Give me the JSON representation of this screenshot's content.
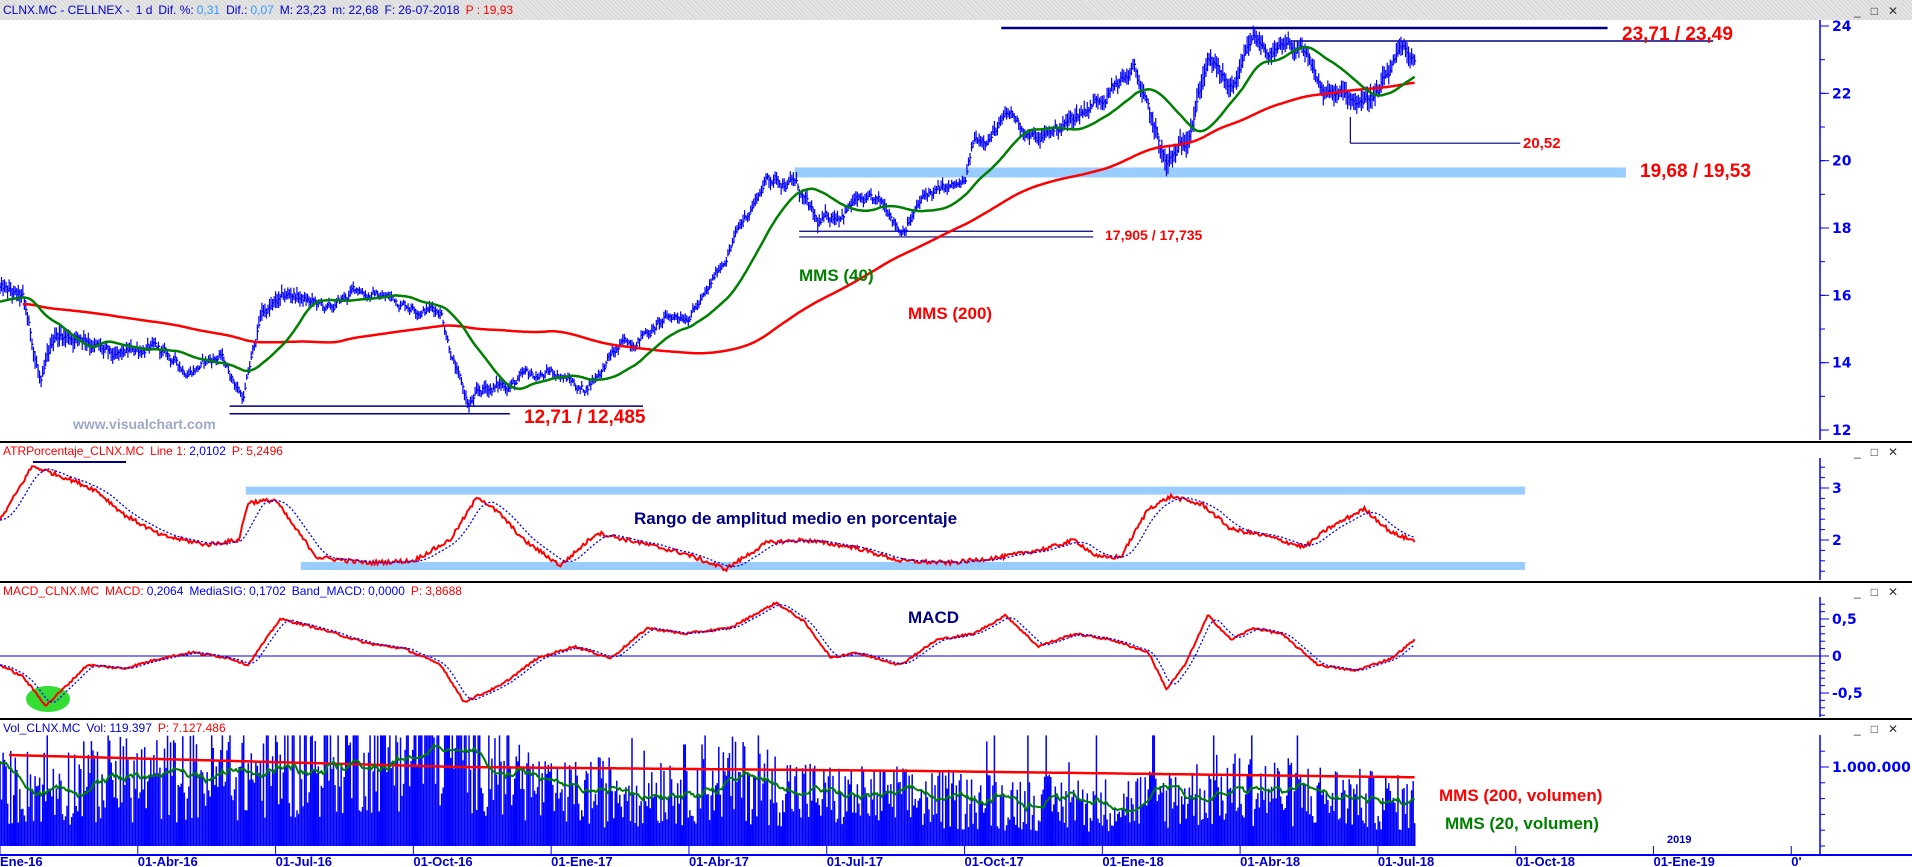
{
  "title_bar": {
    "symbol": "CLNX.MC - CELLNEX -",
    "period": "1 d",
    "dif_pct_label": "Dif. %:",
    "dif_pct": "0,31",
    "dif_label": "Dif.:",
    "dif": "0,07",
    "max_label": "M:",
    "max": "23,23",
    "min_label": "m:",
    "min": "22,68",
    "date_label": "F:",
    "date": "26-07-2018",
    "p_label": "P :",
    "p": "19,93"
  },
  "window_buttons": {
    "minimize": "_",
    "maximize": "□",
    "close": "✕"
  },
  "colors": {
    "bars": "#0000ff",
    "mms200": "#ff0000",
    "mms40": "#008000",
    "band": "#99ccff",
    "lines": "#000080",
    "signal": "#0000ff"
  },
  "watermark": "www.visualchart.com",
  "x_axis": {
    "labels": [
      {
        "m": 0,
        "text": "Ene-16"
      },
      {
        "m": 3,
        "text": "01-Abr-16"
      },
      {
        "m": 6,
        "text": "01-Jul-16"
      },
      {
        "m": 9,
        "text": "01-Oct-16"
      },
      {
        "m": 12,
        "text": "01-Ene-17"
      },
      {
        "m": 15,
        "text": "01-Abr-17"
      },
      {
        "m": 18,
        "text": "01-Jul-17"
      },
      {
        "m": 21,
        "text": "01-Oct-17"
      },
      {
        "m": 24,
        "text": "01-Ene-18"
      },
      {
        "m": 27,
        "text": "01-Abr-18"
      },
      {
        "m": 30,
        "text": "01-Jul-18"
      },
      {
        "m": 33,
        "text": "01-Oct-18"
      },
      {
        "m": 36,
        "text": "01-Ene-19"
      },
      {
        "m": 39,
        "text": "0'"
      }
    ],
    "year_marker": "2019"
  },
  "chart_data": [
    {
      "type": "line",
      "name": "price",
      "title": "CLNX.MC - CELLNEX - 1 d",
      "x_unit": "months since Jan-2016",
      "ylim": [
        12,
        24
      ],
      "yticks": [
        "12",
        "14",
        "16",
        "18",
        "20",
        "22",
        "24"
      ],
      "close_keypoints": [
        [
          0,
          16.2
        ],
        [
          0.5,
          15.8
        ],
        [
          0.9,
          13.3
        ],
        [
          1.2,
          14.8
        ],
        [
          1.9,
          14.8
        ],
        [
          2.5,
          14.0
        ],
        [
          3.2,
          14.5
        ],
        [
          4.0,
          13.8
        ],
        [
          4.8,
          14.2
        ],
        [
          5.3,
          13.0
        ],
        [
          5.7,
          15.5
        ],
        [
          6.4,
          16.0
        ],
        [
          7.2,
          15.5
        ],
        [
          7.8,
          16.2
        ],
        [
          8.8,
          15.8
        ],
        [
          9.6,
          15.6
        ],
        [
          10.0,
          13.5
        ],
        [
          10.2,
          12.7
        ],
        [
          10.6,
          13.2
        ],
        [
          11.4,
          13.5
        ],
        [
          12.2,
          13.7
        ],
        [
          12.7,
          13.2
        ],
        [
          13.3,
          14.2
        ],
        [
          14.1,
          15.0
        ],
        [
          14.9,
          15.5
        ],
        [
          15.4,
          16.0
        ],
        [
          15.9,
          17.5
        ],
        [
          16.7,
          19.5
        ],
        [
          17.3,
          19.4
        ],
        [
          17.8,
          18.0
        ],
        [
          18.6,
          18.8
        ],
        [
          19.4,
          18.5
        ],
        [
          19.6,
          18.0
        ],
        [
          20.2,
          19.0
        ],
        [
          21.0,
          19.2
        ],
        [
          21.2,
          20.5
        ],
        [
          22.0,
          21.3
        ],
        [
          22.6,
          20.6
        ],
        [
          23.4,
          21.3
        ],
        [
          24.2,
          22.2
        ],
        [
          24.7,
          22.7
        ],
        [
          25.1,
          21.0
        ],
        [
          25.4,
          19.8
        ],
        [
          25.8,
          20.5
        ],
        [
          26.3,
          23.1
        ],
        [
          26.8,
          22.0
        ],
        [
          27.3,
          23.5
        ],
        [
          27.7,
          23.2
        ],
        [
          28.3,
          23.3
        ],
        [
          28.8,
          22.0
        ],
        [
          29.5,
          21.8
        ],
        [
          30.0,
          22.0
        ],
        [
          30.5,
          23.1
        ],
        [
          30.8,
          23.0
        ]
      ],
      "moving_averages": [
        {
          "name": "MMS (40)",
          "period": 40
        },
        {
          "name": "MMS (200)",
          "period": 200
        }
      ],
      "annotations": {
        "resistance": {
          "label": "23,71 / 23,49",
          "levels": [
            23.71,
            23.49
          ],
          "from": [
            21.8,
            28.1
          ],
          "to": [
            35.0,
            37.3
          ]
        },
        "support_recent": {
          "label": "20,52",
          "level": 20.52,
          "from": 29.4,
          "to": 33.1
        },
        "support_band": {
          "label": "19,68 / 19,53",
          "levels": [
            19.68,
            19.53
          ],
          "from": 17.3,
          "to": 35.4
        },
        "support_mid": {
          "label": "17,905 / 17,735",
          "levels": [
            17.905,
            17.735
          ],
          "from": 17.4,
          "to": 23.8
        },
        "support_low": {
          "label": "12,71 / 12,485",
          "levels": [
            12.71,
            12.485
          ],
          "from": [
            5.0,
            5.0
          ],
          "to": [
            14.0,
            11.1
          ]
        },
        "mms40_label": "MMS (40)",
        "mms200_label": "MMS (200)"
      }
    },
    {
      "type": "line",
      "name": "ATRPorcentaje",
      "header": {
        "name": "ATRPorcentaje_CLNX.MC",
        "line_label": "Line 1:",
        "line_value": "2,0102",
        "p_label": "P:",
        "p_value": "5,2496"
      },
      "yticks": [
        "2",
        "3"
      ],
      "keypoints": [
        [
          0,
          2.37
        ],
        [
          0.7,
          3.42
        ],
        [
          1.1,
          3.3
        ],
        [
          1.6,
          3.14
        ],
        [
          2.1,
          2.95
        ],
        [
          2.7,
          2.49
        ],
        [
          3.5,
          2.09
        ],
        [
          4.5,
          1.91
        ],
        [
          5.2,
          2.0
        ],
        [
          5.4,
          2.72
        ],
        [
          6.0,
          2.77
        ],
        [
          6.4,
          2.26
        ],
        [
          6.9,
          1.67
        ],
        [
          8.0,
          1.56
        ],
        [
          9.0,
          1.6
        ],
        [
          9.8,
          2.0
        ],
        [
          10.4,
          2.84
        ],
        [
          10.9,
          2.49
        ],
        [
          11.4,
          2.0
        ],
        [
          12.2,
          1.51
        ],
        [
          13.0,
          2.14
        ],
        [
          14.1,
          1.91
        ],
        [
          14.9,
          1.74
        ],
        [
          15.8,
          1.44
        ],
        [
          16.7,
          1.95
        ],
        [
          17.5,
          2.0
        ],
        [
          18.6,
          1.86
        ],
        [
          19.6,
          1.6
        ],
        [
          20.7,
          1.56
        ],
        [
          21.8,
          1.67
        ],
        [
          22.8,
          1.84
        ],
        [
          23.4,
          2.0
        ],
        [
          23.9,
          1.67
        ],
        [
          24.4,
          1.67
        ],
        [
          25.0,
          2.6
        ],
        [
          25.5,
          2.84
        ],
        [
          26.2,
          2.67
        ],
        [
          26.8,
          2.21
        ],
        [
          27.6,
          2.07
        ],
        [
          28.4,
          1.86
        ],
        [
          28.9,
          2.21
        ],
        [
          29.7,
          2.6
        ],
        [
          30.3,
          2.14
        ],
        [
          30.8,
          1.98
        ]
      ],
      "bands": [
        {
          "level": 2.95,
          "from": 5.35,
          "to": 33.2
        },
        {
          "level": 1.5,
          "from": 6.55,
          "to": 33.2
        }
      ],
      "label": "Rango de amplitud medio en porcentaje"
    },
    {
      "type": "line",
      "name": "MACD",
      "header": {
        "name": "MACD_CLNX.MC",
        "macd_label": "MACD:",
        "macd_value": "0,2064",
        "sig_label": "MediaSIG:",
        "sig_value": "0,1702",
        "band_label": "Band_MACD:",
        "band_value": "0,0000",
        "p_label": "P:",
        "p_value": "3,8688"
      },
      "yticks": [
        "0,5",
        "0",
        "-0,5"
      ],
      "keypoints": [
        [
          0,
          -0.12
        ],
        [
          0.5,
          -0.28
        ],
        [
          1.0,
          -0.67
        ],
        [
          1.5,
          -0.37
        ],
        [
          1.9,
          -0.12
        ],
        [
          2.7,
          -0.17
        ],
        [
          3.5,
          -0.03
        ],
        [
          4.2,
          0.05
        ],
        [
          5.0,
          -0.03
        ],
        [
          5.4,
          -0.12
        ],
        [
          6.1,
          0.5
        ],
        [
          6.9,
          0.38
        ],
        [
          8.0,
          0.17
        ],
        [
          8.8,
          0.1
        ],
        [
          9.6,
          -0.12
        ],
        [
          10.1,
          -0.62
        ],
        [
          10.9,
          -0.4
        ],
        [
          11.7,
          -0.03
        ],
        [
          12.5,
          0.13
        ],
        [
          13.3,
          -0.03
        ],
        [
          14.1,
          0.38
        ],
        [
          14.9,
          0.3
        ],
        [
          15.9,
          0.38
        ],
        [
          16.9,
          0.72
        ],
        [
          17.5,
          0.47
        ],
        [
          18.1,
          -0.03
        ],
        [
          18.6,
          0.05
        ],
        [
          19.6,
          -0.12
        ],
        [
          20.4,
          0.22
        ],
        [
          21.2,
          0.3
        ],
        [
          21.9,
          0.55
        ],
        [
          22.6,
          0.13
        ],
        [
          23.4,
          0.3
        ],
        [
          24.2,
          0.22
        ],
        [
          25.0,
          0.05
        ],
        [
          25.4,
          -0.45
        ],
        [
          25.8,
          -0.12
        ],
        [
          26.3,
          0.55
        ],
        [
          26.8,
          0.22
        ],
        [
          27.3,
          0.38
        ],
        [
          27.9,
          0.3
        ],
        [
          28.7,
          -0.12
        ],
        [
          29.5,
          -0.2
        ],
        [
          30.3,
          -0.03
        ],
        [
          30.8,
          0.22
        ]
      ],
      "label": "MACD"
    },
    {
      "type": "bar",
      "name": "Volume",
      "header": {
        "name": "Vol_CLNX.MC",
        "vol_label": "Vol:",
        "vol_value": "119.397",
        "p_label": "P:",
        "p_value": "7.127.486"
      },
      "yticks": [
        "1.000.000"
      ],
      "base_level_keypoints": [
        [
          0,
          700000
        ],
        [
          6,
          900000
        ],
        [
          9.5,
          1300000
        ],
        [
          10.5,
          1100000
        ],
        [
          12,
          600000
        ],
        [
          16,
          800000
        ],
        [
          18,
          600000
        ],
        [
          24,
          500000
        ],
        [
          27,
          700000
        ],
        [
          30.8,
          500000
        ]
      ],
      "mms200_keypoints": [
        [
          0.3,
          1150000
        ],
        [
          10,
          1000000
        ],
        [
          20,
          950000
        ],
        [
          30.8,
          870000
        ]
      ],
      "labels": {
        "mms200": "MMS (200, volumen)",
        "mms20": "MMS (20, volumen)"
      }
    }
  ]
}
